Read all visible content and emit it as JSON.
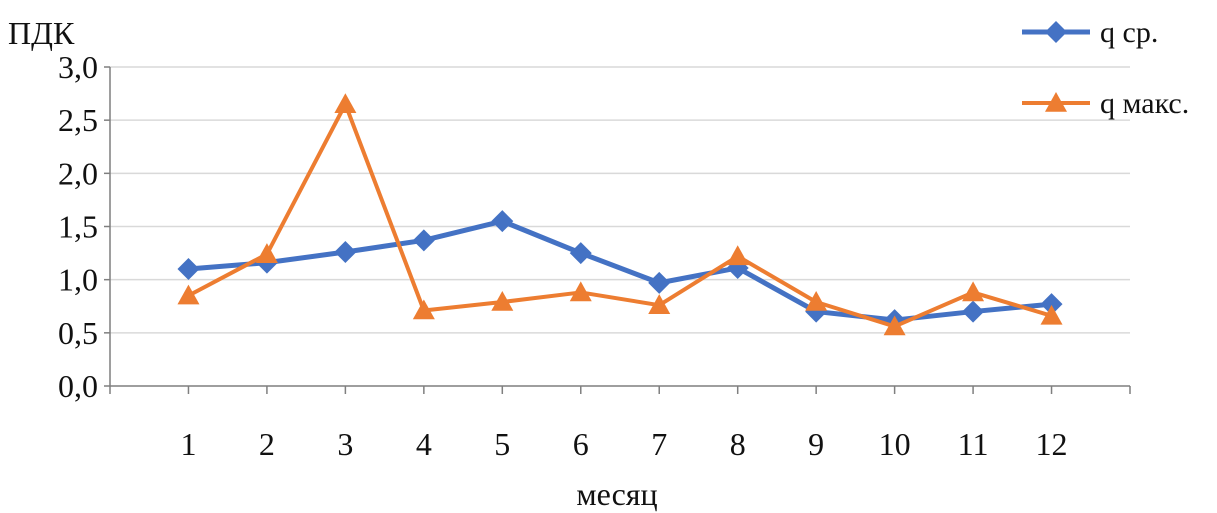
{
  "chart_data": {
    "type": "line",
    "ylabel": "ПДК",
    "xlabel": "месяц",
    "categories": [
      "1",
      "2",
      "3",
      "4",
      "5",
      "6",
      "7",
      "8",
      "9",
      "10",
      "11",
      "12"
    ],
    "y_ticks": [
      "0,0",
      "0,5",
      "1,0",
      "1,5",
      "2,0",
      "2,5",
      "3,0"
    ],
    "ylim": [
      0,
      3
    ],
    "grid": "horizontal",
    "legend_position": "top-right",
    "series": [
      {
        "name": "q ср.",
        "color": "#4472C4",
        "marker": "diamond",
        "values": [
          1.1,
          1.16,
          1.26,
          1.37,
          1.55,
          1.25,
          0.97,
          1.11,
          0.7,
          0.62,
          0.7,
          0.77
        ]
      },
      {
        "name": "q макс.",
        "color": "#ED7D31",
        "marker": "triangle",
        "values": [
          0.85,
          1.24,
          2.65,
          0.71,
          0.79,
          0.88,
          0.76,
          1.22,
          0.79,
          0.56,
          0.88,
          0.66
        ]
      }
    ]
  }
}
